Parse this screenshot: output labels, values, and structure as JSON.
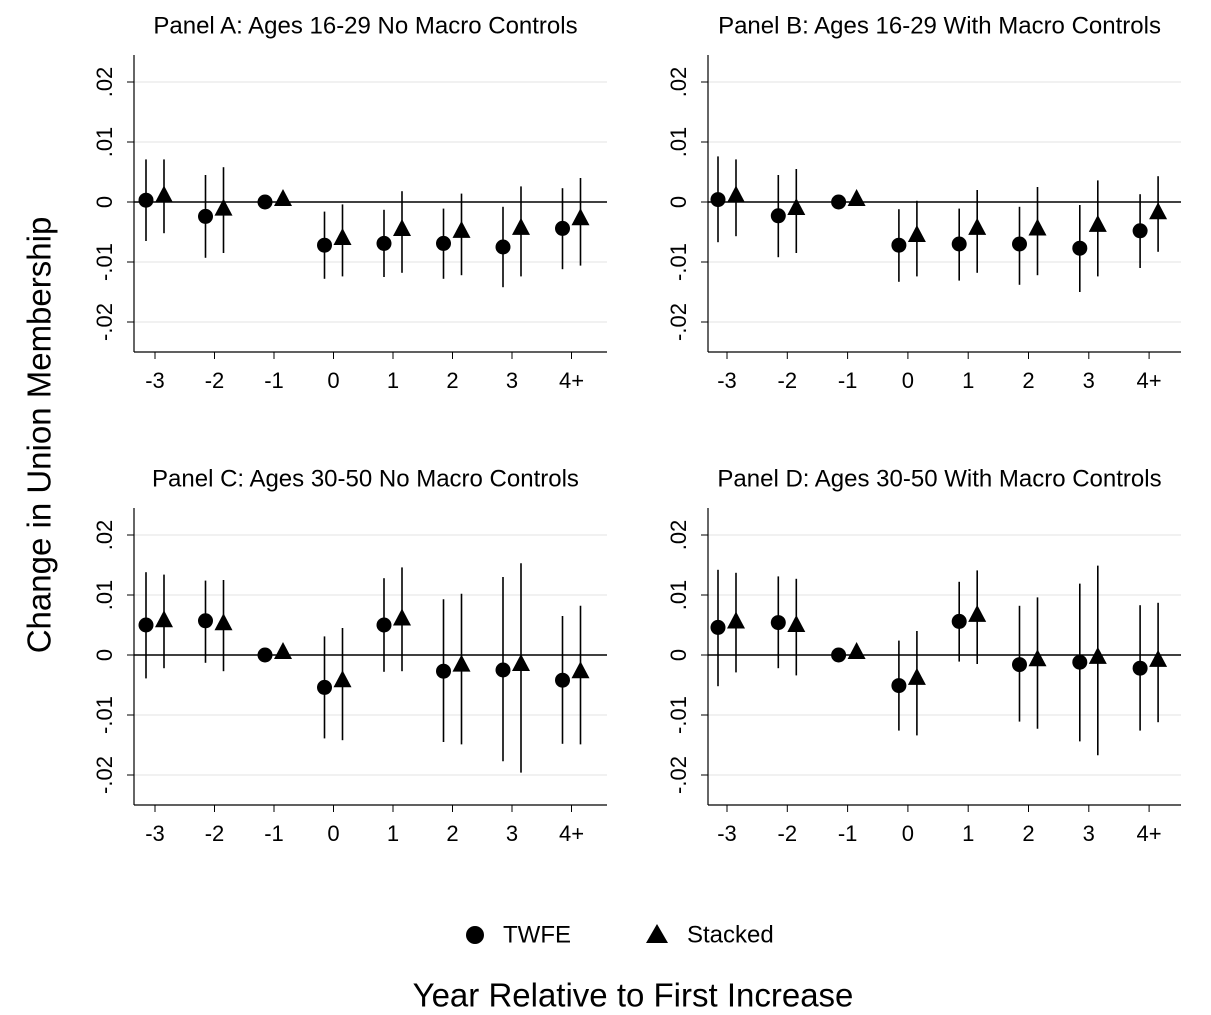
{
  "figure": {
    "ylabel": "Change in Union Membership",
    "xlabel": "Year Relative to First Increase",
    "legend": {
      "placement": "bottom-center",
      "items": [
        {
          "label": "TWFE",
          "marker": "circle"
        },
        {
          "label": "Stacked",
          "marker": "triangle"
        }
      ]
    }
  },
  "chart_data": [
    {
      "type": "scatter",
      "title": "Panel A: Ages 16-29 No Macro Controls",
      "categories": [
        "-3",
        "-2",
        "-1",
        "0",
        "1",
        "2",
        "3",
        "4+"
      ],
      "yticks": [
        ".02",
        ".01",
        "0",
        "-.01",
        "-.02"
      ],
      "ylim": [
        -0.0225,
        0.0225
      ],
      "reference_line": 0,
      "grid": true,
      "series": [
        {
          "name": "TWFE",
          "marker": "circle",
          "values": [
            0.0003,
            -0.0024,
            0.0,
            -0.0072,
            -0.0069,
            -0.0069,
            -0.0075,
            -0.0044
          ],
          "ci_low": [
            -0.0065,
            -0.0093,
            0.0,
            -0.0128,
            -0.0125,
            -0.0128,
            -0.0142,
            -0.0112
          ],
          "ci_high": [
            0.0071,
            0.0045,
            0.0,
            -0.0016,
            -0.0013,
            -0.0011,
            -0.0008,
            0.0023
          ]
        },
        {
          "name": "Stacked",
          "marker": "triangle",
          "values": [
            0.001,
            -0.0012,
            0.0004,
            -0.0061,
            -0.0046,
            -0.0049,
            -0.0044,
            -0.0028
          ],
          "ci_low": [
            -0.0052,
            -0.0085,
            0.0004,
            -0.0124,
            -0.0118,
            -0.0122,
            -0.0124,
            -0.0106
          ],
          "ci_high": [
            0.0071,
            0.0058,
            0.0004,
            -0.0004,
            0.0018,
            0.0014,
            0.0026,
            0.004
          ]
        }
      ]
    },
    {
      "type": "scatter",
      "title": "Panel B: Ages 16-29 With Macro Controls",
      "categories": [
        "-3",
        "-2",
        "-1",
        "0",
        "1",
        "2",
        "3",
        "4+"
      ],
      "yticks": [
        ".02",
        ".01",
        "0",
        "-.01",
        "-.02"
      ],
      "ylim": [
        -0.0225,
        0.0225
      ],
      "reference_line": 0,
      "grid": true,
      "series": [
        {
          "name": "TWFE",
          "marker": "circle",
          "values": [
            0.0004,
            -0.0023,
            0.0,
            -0.0072,
            -0.007,
            -0.007,
            -0.0077,
            -0.0048
          ],
          "ci_low": [
            -0.0067,
            -0.0092,
            0.0,
            -0.0133,
            -0.0131,
            -0.0138,
            -0.015,
            -0.011
          ],
          "ci_high": [
            0.0076,
            0.0045,
            0.0,
            -0.0012,
            -0.0011,
            -0.0008,
            -0.0005,
            0.0013
          ]
        },
        {
          "name": "Stacked",
          "marker": "triangle",
          "values": [
            0.001,
            -0.0011,
            0.0004,
            -0.0056,
            -0.0044,
            -0.0045,
            -0.0039,
            -0.0018
          ],
          "ci_low": [
            -0.0057,
            -0.0085,
            0.0004,
            -0.0124,
            -0.0118,
            -0.0122,
            -0.0124,
            -0.0083
          ],
          "ci_high": [
            0.0071,
            0.0055,
            0.0004,
            0.0002,
            0.002,
            0.0025,
            0.0036,
            0.0043
          ]
        }
      ]
    },
    {
      "type": "scatter",
      "title": "Panel C: Ages 30-50 No Macro Controls",
      "categories": [
        "-3",
        "-2",
        "-1",
        "0",
        "1",
        "2",
        "3",
        "4+"
      ],
      "yticks": [
        ".02",
        ".01",
        "0",
        "-.01",
        "-.02"
      ],
      "ylim": [
        -0.0225,
        0.0225
      ],
      "reference_line": 0,
      "grid": true,
      "series": [
        {
          "name": "TWFE",
          "marker": "circle",
          "values": [
            0.005,
            0.0057,
            0.0,
            -0.0054,
            0.005,
            -0.0027,
            -0.0025,
            -0.0042
          ],
          "ci_low": [
            -0.0039,
            -0.0013,
            0.0,
            -0.0139,
            -0.0028,
            -0.0145,
            -0.0177,
            -0.0148
          ],
          "ci_high": [
            0.0138,
            0.0124,
            0.0,
            0.0031,
            0.0128,
            0.0093,
            0.013,
            0.0065
          ]
        },
        {
          "name": "Stacked",
          "marker": "triangle",
          "values": [
            0.0057,
            0.0052,
            0.0004,
            -0.0043,
            0.006,
            -0.0017,
            -0.0016,
            -0.0028
          ],
          "ci_low": [
            -0.0022,
            -0.0027,
            0.0004,
            -0.0142,
            -0.0027,
            -0.0149,
            -0.0196,
            -0.0149
          ],
          "ci_high": [
            0.0134,
            0.0125,
            0.0004,
            0.0045,
            0.0146,
            0.0102,
            0.0153,
            0.0082
          ]
        }
      ]
    },
    {
      "type": "scatter",
      "title": "Panel D: Ages 30-50 With Macro Controls",
      "categories": [
        "-3",
        "-2",
        "-1",
        "0",
        "1",
        "2",
        "3",
        "4+"
      ],
      "yticks": [
        ".02",
        ".01",
        "0",
        "-.01",
        "-.02"
      ],
      "ylim": [
        -0.0225,
        0.0225
      ],
      "reference_line": 0,
      "grid": true,
      "series": [
        {
          "name": "TWFE",
          "marker": "circle",
          "values": [
            0.0046,
            0.0054,
            0.0,
            -0.0051,
            0.0056,
            -0.0016,
            -0.0012,
            -0.0022
          ],
          "ci_low": [
            -0.0052,
            -0.0022,
            0.0,
            -0.0126,
            -0.0011,
            -0.0111,
            -0.0144,
            -0.0126
          ],
          "ci_high": [
            0.0142,
            0.0131,
            0.0,
            0.0024,
            0.0122,
            0.0082,
            0.0119,
            0.0083
          ]
        },
        {
          "name": "Stacked",
          "marker": "triangle",
          "values": [
            0.0055,
            0.0049,
            0.0004,
            -0.0039,
            0.0066,
            -0.0008,
            -0.0004,
            -0.0009
          ],
          "ci_low": [
            -0.0029,
            -0.0034,
            0.0004,
            -0.0134,
            -0.0015,
            -0.0123,
            -0.0167,
            -0.0112
          ],
          "ci_high": [
            0.0137,
            0.0127,
            0.0004,
            0.004,
            0.0141,
            0.0096,
            0.0149,
            0.0087
          ]
        }
      ]
    }
  ]
}
